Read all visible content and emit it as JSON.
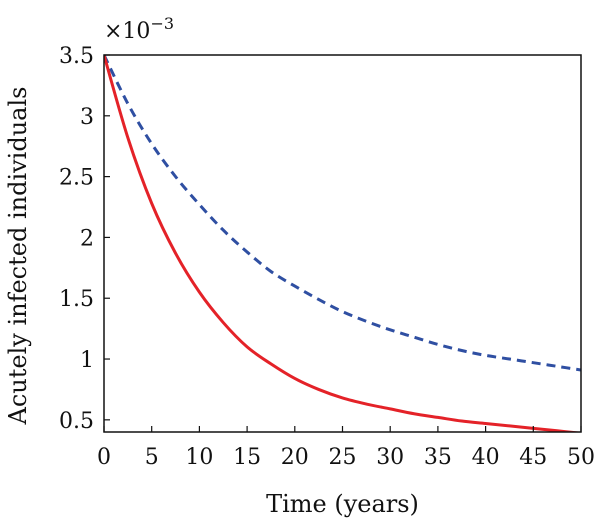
{
  "chart_data": {
    "type": "line",
    "title": "",
    "xlabel": "Time (years)",
    "ylabel": "Acutely infected individuals",
    "y_multiplier_base": "×10",
    "y_multiplier_exp": "−3",
    "xlim": [
      0,
      50
    ],
    "ylim": [
      0.4,
      3.5
    ],
    "xticks": [
      0,
      5,
      10,
      15,
      20,
      25,
      30,
      35,
      40,
      45,
      50
    ],
    "xtick_labels": [
      "0",
      "5",
      "10",
      "15",
      "20",
      "25",
      "30",
      "35",
      "40",
      "45",
      "50"
    ],
    "yticks": [
      0.5,
      1,
      1.5,
      2,
      2.5,
      3,
      3.5
    ],
    "ytick_labels": [
      "0.5",
      "1",
      "1.5",
      "2",
      "2.5",
      "3",
      "3.5"
    ],
    "grid": false,
    "legend": "none",
    "series": [
      {
        "style": "dashed",
        "color": "#2f4fa2",
        "x": [
          0,
          2.5,
          5,
          7.5,
          10,
          12.5,
          15,
          17.5,
          20,
          22.5,
          25,
          27.5,
          30,
          32.5,
          35,
          37.5,
          40,
          42.5,
          45,
          47.5,
          50
        ],
        "y": [
          3.5,
          3.1,
          2.77,
          2.5,
          2.27,
          2.06,
          1.88,
          1.72,
          1.6,
          1.49,
          1.39,
          1.31,
          1.24,
          1.18,
          1.12,
          1.07,
          1.03,
          1.0,
          0.97,
          0.94,
          0.91
        ]
      },
      {
        "style": "solid",
        "color": "#e42228",
        "x": [
          0,
          2.5,
          5,
          7.5,
          10,
          12.5,
          15,
          17.5,
          20,
          22.5,
          25,
          27.5,
          30,
          32.5,
          35,
          37.5,
          40,
          42.5,
          45,
          47.5,
          50
        ],
        "y": [
          3.5,
          2.82,
          2.28,
          1.87,
          1.55,
          1.3,
          1.1,
          0.96,
          0.84,
          0.75,
          0.68,
          0.63,
          0.59,
          0.55,
          0.52,
          0.49,
          0.47,
          0.45,
          0.43,
          0.41,
          0.39
        ]
      }
    ]
  }
}
